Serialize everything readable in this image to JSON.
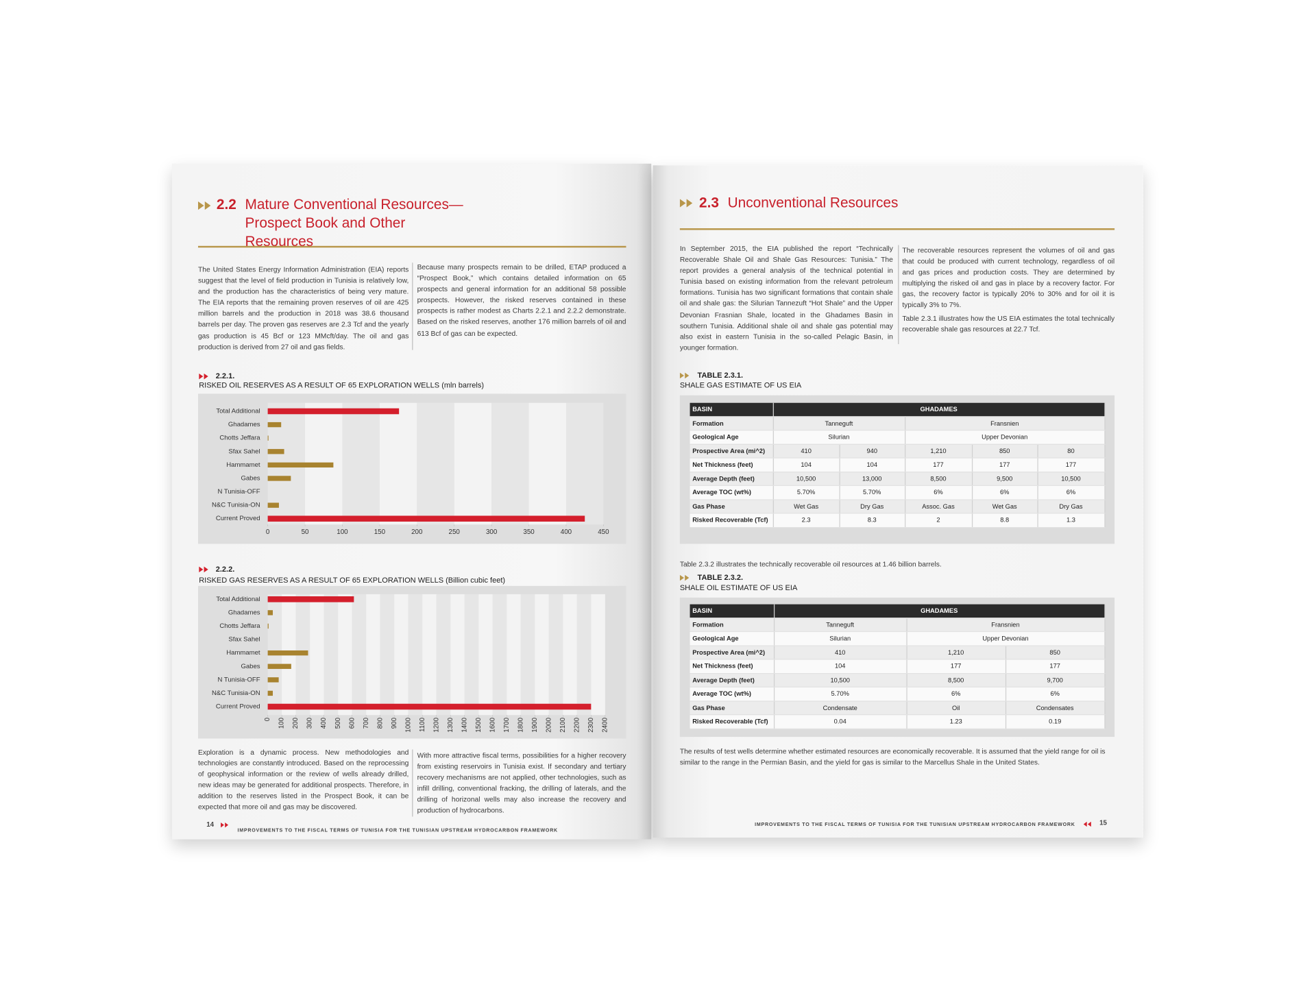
{
  "left_page": {
    "section": {
      "number": "2.2",
      "title": "Mature Conventional Resources—Prospect Book and Other Resources"
    },
    "intro": [
      "The United States Energy Information Administration (EIA) reports suggest that the level of field production in Tunisia is relatively low, and the production has the characteristics of being very mature. The EIA reports that the remaining proven reserves of oil are 425 million barrels and the production in 2018 was 38.6 thousand barrels per day. The proven gas reserves are 2.3 Tcf and the yearly gas production is 45 Bcf or 123 MMcft/day. The oil and gas production is derived from 27 oil and gas fields.",
      "Because many prospects remain to be drilled, ETAP produced a “Prospect Book,” which contains detailed information on 65 prospects and general information for an additional 58 possible prospects. However, the risked reserves contained in these prospects is rather modest as Charts 2.2.1 and 2.2.2 demonstrate. Based on the risked reserves, another 176 million barrels of oil and 613 Bcf of gas can be expected."
    ],
    "closing": [
      "Exploration is a dynamic process. New methodologies and technologies are constantly introduced. Based on the reprocessing of geophysical information or the review of wells already drilled, new ideas may be generated for additional prospects. Therefore, in addition to the reserves listed in the Prospect Book, it can be expected that more oil and gas may be discovered.",
      "With more attractive fiscal terms, possibilities for a higher recovery from existing reservoirs in Tunisia exist. If secondary and tertiary recovery mechanisms are not applied, other technologies, such as infill drilling, conventional fracking, the drilling of laterals, and the drilling of horizonal wells may also increase the recovery and production of hydrocarbons."
    ],
    "footer": {
      "page": "14",
      "text": "IMPROVEMENTS TO THE FISCAL TERMS OF TUNISIA FOR THE TUNISIAN UPSTREAM HYDROCARBON FRAMEWORK"
    }
  },
  "chart_data": [
    {
      "type": "bar",
      "orientation": "horizontal",
      "number": "2.2.1.",
      "title": "RISKED OIL RESERVES AS A RESULT OF 65 EXPLORATION WELLS (mln barrels)",
      "categories": [
        "Total Additional",
        "Ghadames",
        "Chotts Jeffara",
        "Sfax Sahel",
        "Hammamet",
        "Gabes",
        "N Tunisia-OFF",
        "N&C Tunisia-ON",
        "Current Proved"
      ],
      "values": [
        176,
        18,
        1,
        22,
        88,
        31,
        0,
        15,
        425
      ],
      "colors": [
        "#d41f2c",
        "#a8832f",
        "#a8832f",
        "#a8832f",
        "#a8832f",
        "#a8832f",
        "#a8832f",
        "#a8832f",
        "#d41f2c"
      ],
      "xlim": [
        0,
        450
      ],
      "xticks": [
        0,
        50,
        100,
        150,
        200,
        250,
        300,
        350,
        400,
        450
      ],
      "grid": true
    },
    {
      "type": "bar",
      "orientation": "horizontal",
      "number": "2.2.2.",
      "title": "RISKED GAS RESERVES AS A RESULT OF 65 EXPLORATION WELLS (Billion cubic feet)",
      "categories": [
        "Total Additional",
        "Ghadames",
        "Chotts Jeffara",
        "Sfax Sahel",
        "Hammamet",
        "Gabes",
        "N Tunisia-OFF",
        "N&C Tunisia-ON",
        "Current Proved"
      ],
      "values": [
        613,
        36,
        6,
        0,
        287,
        167,
        78,
        36,
        2300
      ],
      "colors": [
        "#d41f2c",
        "#a8832f",
        "#a8832f",
        "#a8832f",
        "#a8832f",
        "#a8832f",
        "#a8832f",
        "#a8832f",
        "#d41f2c"
      ],
      "xlim": [
        0,
        2400
      ],
      "xticks": [
        0,
        100,
        200,
        300,
        400,
        500,
        600,
        700,
        800,
        900,
        1000,
        1100,
        1200,
        1300,
        1400,
        1500,
        1600,
        1700,
        1800,
        1900,
        2000,
        2100,
        2200,
        2300,
        2400
      ],
      "grid": true
    }
  ],
  "right_page": {
    "section": {
      "number": "2.3",
      "title": "Unconventional Resources"
    },
    "intro": [
      "In September 2015, the EIA published the report “Technically Recoverable Shale Oil and Shale Gas Resources: Tunisia.” The report provides a general analysis of the technical potential in Tunisia based on existing information from the relevant petroleum formations. Tunisia has two significant formations that contain shale oil and shale gas: the Silurian Tannezuft “Hot Shale” and the Upper Devonian Frasnian Shale, located in the Ghadames Basin in southern Tunisia. Additional shale oil and shale gas potential may also exist in eastern Tunisia in the so-called Pelagic Basin, in younger formation.",
      "The recoverable resources represent the volumes of oil and gas that could be produced with current technology, regardless of oil and gas prices and production costs. They are determined by multiplying the risked oil and gas in place by a recovery factor. For gas, the recovery factor is typically 20% to 30% and for oil it is typically 3% to 7%.",
      "Table 2.3.1 illustrates how the US EIA estimates the total technically recoverable shale gas resources at 22.7 Tcf."
    ],
    "tables": [
      {
        "number": "TABLE 2.3.1.",
        "title": "SHALE GAS ESTIMATE OF US EIA",
        "header": [
          "BASIN",
          "GHADAMES"
        ],
        "rows": [
          [
            "Formation",
            "Tanneguft",
            "Fransnien"
          ],
          [
            "Geological Age",
            "Silurian",
            "Upper Devonian"
          ],
          [
            "Prospective Area (mi^2)",
            "410",
            "940",
            "1,210",
            "850",
            "80"
          ],
          [
            "Net Thickness (feet)",
            "104",
            "104",
            "177",
            "177",
            "177"
          ],
          [
            "Average Depth (feet)",
            "10,500",
            "13,000",
            "8,500",
            "9,500",
            "10,500"
          ],
          [
            "Average TOC (wt%)",
            "5.70%",
            "5.70%",
            "6%",
            "6%",
            "6%"
          ],
          [
            "Gas Phase",
            "Wet Gas",
            "Dry Gas",
            "Assoc. Gas",
            "Wet Gas",
            "Dry Gas"
          ],
          [
            "Risked Recoverable (Tcf)",
            "2.3",
            "8.3",
            "2",
            "8.8",
            "1.3"
          ]
        ]
      },
      {
        "number": "TABLE 2.3.2.",
        "title": "SHALE OIL ESTIMATE OF US EIA",
        "header": [
          "BASIN",
          "GHADAMES"
        ],
        "rows": [
          [
            "Formation",
            "Tanneguft",
            "Fransnien"
          ],
          [
            "Geological Age",
            "Silurian",
            "Upper Devonian"
          ],
          [
            "Prospective Area (mi^2)",
            "410",
            "1,210",
            "850"
          ],
          [
            "Net Thickness (feet)",
            "104",
            "177",
            "177"
          ],
          [
            "Average Depth (feet)",
            "10,500",
            "8,500",
            "9,700"
          ],
          [
            "Average TOC (wt%)",
            "5.70%",
            "6%",
            "6%"
          ],
          [
            "Gas Phase",
            "Condensate",
            "Oil",
            "Condensates"
          ],
          [
            "Risked Recoverable (Tcf)",
            "0.04",
            "1.23",
            "0.19"
          ]
        ]
      }
    ],
    "between_tables": "Table 2.3.2 illustrates the technically recoverable oil resources at 1.46 billion barrels.",
    "closing": "The results of test wells determine whether estimated resources are economically recoverable. It is assumed that the yield range for oil is similar to the range in the Permian Basin, and the yield for gas is similar to the Marcellus Shale in the United States.",
    "footer": {
      "page": "15",
      "text": "IMPROVEMENTS TO THE FISCAL TERMS OF TUNISIA FOR THE TUNISIAN UPSTREAM HYDROCARBON FRAMEWORK"
    }
  }
}
